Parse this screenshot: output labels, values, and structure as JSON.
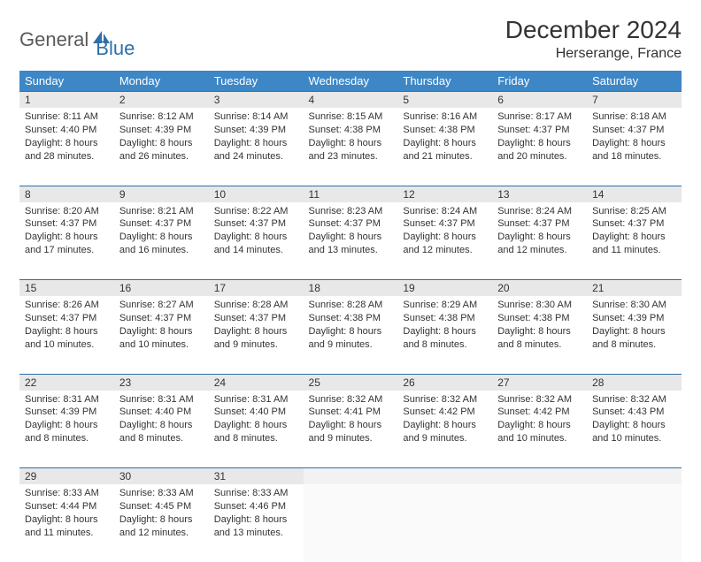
{
  "logo": {
    "part1": "General",
    "part2": "Blue"
  },
  "title": "December 2024",
  "location": "Herserange, France",
  "colors": {
    "header_bg": "#3d87c6",
    "header_text": "#ffffff",
    "daynum_bg": "#e8e8e8",
    "border": "#2f6fa8",
    "logo_gray": "#5a5a5a",
    "logo_blue": "#2f6fa8"
  },
  "weekdays": [
    "Sunday",
    "Monday",
    "Tuesday",
    "Wednesday",
    "Thursday",
    "Friday",
    "Saturday"
  ],
  "weeks": [
    [
      {
        "n": "1",
        "sr": "8:11 AM",
        "ss": "4:40 PM",
        "dl": "8 hours and 28 minutes."
      },
      {
        "n": "2",
        "sr": "8:12 AM",
        "ss": "4:39 PM",
        "dl": "8 hours and 26 minutes."
      },
      {
        "n": "3",
        "sr": "8:14 AM",
        "ss": "4:39 PM",
        "dl": "8 hours and 24 minutes."
      },
      {
        "n": "4",
        "sr": "8:15 AM",
        "ss": "4:38 PM",
        "dl": "8 hours and 23 minutes."
      },
      {
        "n": "5",
        "sr": "8:16 AM",
        "ss": "4:38 PM",
        "dl": "8 hours and 21 minutes."
      },
      {
        "n": "6",
        "sr": "8:17 AM",
        "ss": "4:37 PM",
        "dl": "8 hours and 20 minutes."
      },
      {
        "n": "7",
        "sr": "8:18 AM",
        "ss": "4:37 PM",
        "dl": "8 hours and 18 minutes."
      }
    ],
    [
      {
        "n": "8",
        "sr": "8:20 AM",
        "ss": "4:37 PM",
        "dl": "8 hours and 17 minutes."
      },
      {
        "n": "9",
        "sr": "8:21 AM",
        "ss": "4:37 PM",
        "dl": "8 hours and 16 minutes."
      },
      {
        "n": "10",
        "sr": "8:22 AM",
        "ss": "4:37 PM",
        "dl": "8 hours and 14 minutes."
      },
      {
        "n": "11",
        "sr": "8:23 AM",
        "ss": "4:37 PM",
        "dl": "8 hours and 13 minutes."
      },
      {
        "n": "12",
        "sr": "8:24 AM",
        "ss": "4:37 PM",
        "dl": "8 hours and 12 minutes."
      },
      {
        "n": "13",
        "sr": "8:24 AM",
        "ss": "4:37 PM",
        "dl": "8 hours and 12 minutes."
      },
      {
        "n": "14",
        "sr": "8:25 AM",
        "ss": "4:37 PM",
        "dl": "8 hours and 11 minutes."
      }
    ],
    [
      {
        "n": "15",
        "sr": "8:26 AM",
        "ss": "4:37 PM",
        "dl": "8 hours and 10 minutes."
      },
      {
        "n": "16",
        "sr": "8:27 AM",
        "ss": "4:37 PM",
        "dl": "8 hours and 10 minutes."
      },
      {
        "n": "17",
        "sr": "8:28 AM",
        "ss": "4:37 PM",
        "dl": "8 hours and 9 minutes."
      },
      {
        "n": "18",
        "sr": "8:28 AM",
        "ss": "4:38 PM",
        "dl": "8 hours and 9 minutes."
      },
      {
        "n": "19",
        "sr": "8:29 AM",
        "ss": "4:38 PM",
        "dl": "8 hours and 8 minutes."
      },
      {
        "n": "20",
        "sr": "8:30 AM",
        "ss": "4:38 PM",
        "dl": "8 hours and 8 minutes."
      },
      {
        "n": "21",
        "sr": "8:30 AM",
        "ss": "4:39 PM",
        "dl": "8 hours and 8 minutes."
      }
    ],
    [
      {
        "n": "22",
        "sr": "8:31 AM",
        "ss": "4:39 PM",
        "dl": "8 hours and 8 minutes."
      },
      {
        "n": "23",
        "sr": "8:31 AM",
        "ss": "4:40 PM",
        "dl": "8 hours and 8 minutes."
      },
      {
        "n": "24",
        "sr": "8:31 AM",
        "ss": "4:40 PM",
        "dl": "8 hours and 8 minutes."
      },
      {
        "n": "25",
        "sr": "8:32 AM",
        "ss": "4:41 PM",
        "dl": "8 hours and 9 minutes."
      },
      {
        "n": "26",
        "sr": "8:32 AM",
        "ss": "4:42 PM",
        "dl": "8 hours and 9 minutes."
      },
      {
        "n": "27",
        "sr": "8:32 AM",
        "ss": "4:42 PM",
        "dl": "8 hours and 10 minutes."
      },
      {
        "n": "28",
        "sr": "8:32 AM",
        "ss": "4:43 PM",
        "dl": "8 hours and 10 minutes."
      }
    ],
    [
      {
        "n": "29",
        "sr": "8:33 AM",
        "ss": "4:44 PM",
        "dl": "8 hours and 11 minutes."
      },
      {
        "n": "30",
        "sr": "8:33 AM",
        "ss": "4:45 PM",
        "dl": "8 hours and 12 minutes."
      },
      {
        "n": "31",
        "sr": "8:33 AM",
        "ss": "4:46 PM",
        "dl": "8 hours and 13 minutes."
      },
      null,
      null,
      null,
      null
    ]
  ],
  "labels": {
    "sunrise": "Sunrise: ",
    "sunset": "Sunset: ",
    "daylight": "Daylight: "
  }
}
